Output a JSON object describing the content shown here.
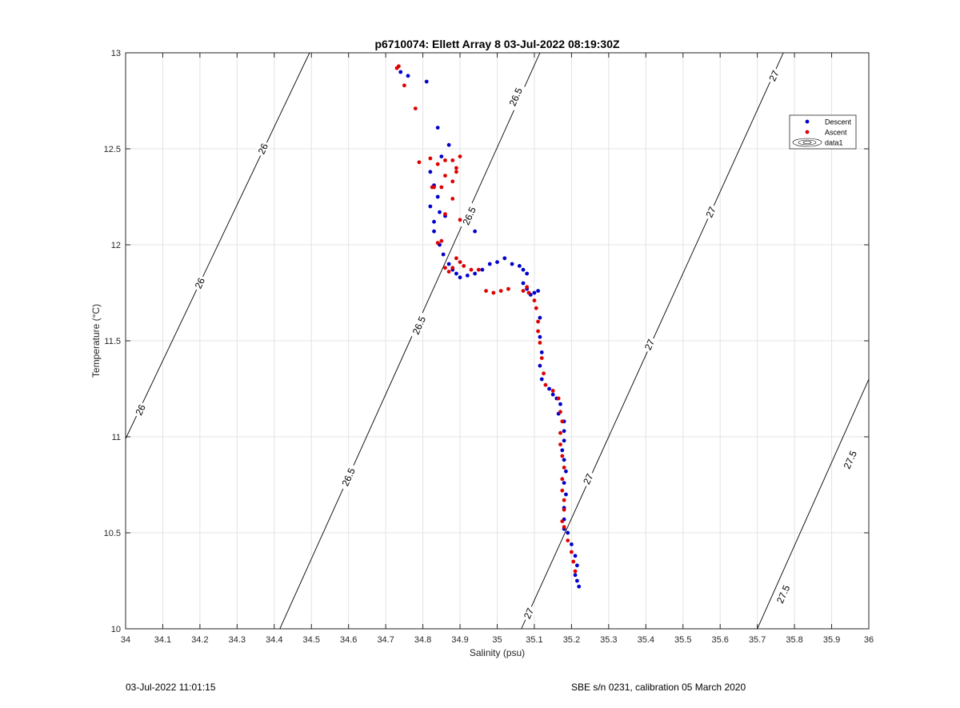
{
  "chart_data": {
    "type": "scatter",
    "title": "p6710074: Ellett Array 8 03-Jul-2022 08:19:30Z",
    "xlabel": "Salinity (psu)",
    "ylabel": "Temperature (°C)",
    "xlim": [
      34,
      36
    ],
    "ylim": [
      10,
      13
    ],
    "grid": true,
    "xticks": [
      "34",
      "34.1",
      "34.2",
      "34.3",
      "34.4",
      "34.5",
      "34.6",
      "34.7",
      "34.8",
      "34.9",
      "35",
      "35.1",
      "35.2",
      "35.3",
      "35.4",
      "35.5",
      "35.6",
      "35.7",
      "35.8",
      "35.9",
      "36"
    ],
    "yticks": [
      "10",
      "10.5",
      "11",
      "11.5",
      "12",
      "12.5",
      "13"
    ],
    "legend_position": "top-right",
    "legend": [
      {
        "name": "Descent",
        "color": "#0000cc"
      },
      {
        "name": "Ascent",
        "color": "#dd0000"
      },
      {
        "name": "data1",
        "color": "#000000"
      }
    ],
    "contours": [
      {
        "label": "26",
        "points": [
          [
            34,
            10.99
          ],
          [
            34.495,
            13
          ]
        ],
        "label_positions": [
          [
            34.04,
            11.14
          ],
          [
            34.2,
            11.8
          ],
          [
            34.37,
            12.5
          ]
        ]
      },
      {
        "label": "26.5",
        "points": [
          [
            34.415,
            10
          ],
          [
            35.115,
            13
          ]
        ],
        "label_positions": [
          [
            34.6,
            10.79
          ],
          [
            34.79,
            11.58
          ],
          [
            34.925,
            12.15
          ],
          [
            35.05,
            12.77
          ]
        ]
      },
      {
        "label": "27",
        "points": [
          [
            35.065,
            10
          ],
          [
            35.77,
            13
          ]
        ],
        "label_positions": [
          [
            35.085,
            10.08
          ],
          [
            35.245,
            10.78
          ],
          [
            35.41,
            11.48
          ],
          [
            35.575,
            12.17
          ],
          [
            35.745,
            12.88
          ]
        ]
      },
      {
        "label": "27.5",
        "points": [
          [
            35.7,
            10
          ],
          [
            36,
            11.3
          ]
        ],
        "label_positions": [
          [
            35.77,
            10.18
          ],
          [
            35.95,
            10.88
          ]
        ]
      }
    ],
    "series": [
      {
        "name": "Descent",
        "color": "#0000cc",
        "points": [
          [
            34.74,
            12.9
          ],
          [
            34.76,
            12.88
          ],
          [
            34.81,
            12.85
          ],
          [
            34.84,
            12.61
          ],
          [
            34.87,
            12.52
          ],
          [
            34.85,
            12.46
          ],
          [
            34.82,
            12.38
          ],
          [
            34.83,
            12.31
          ],
          [
            34.82,
            12.2
          ],
          [
            34.84,
            12.25
          ],
          [
            34.845,
            12.17
          ],
          [
            34.83,
            12.12
          ],
          [
            34.86,
            12.15
          ],
          [
            34.83,
            12.07
          ],
          [
            34.845,
            12.0
          ],
          [
            34.855,
            11.95
          ],
          [
            34.87,
            11.9
          ],
          [
            34.88,
            11.87
          ],
          [
            34.89,
            11.85
          ],
          [
            34.9,
            11.83
          ],
          [
            34.92,
            11.84
          ],
          [
            34.94,
            11.85
          ],
          [
            34.96,
            11.87
          ],
          [
            34.98,
            11.9
          ],
          [
            35.0,
            11.91
          ],
          [
            35.02,
            11.93
          ],
          [
            35.04,
            11.9
          ],
          [
            35.06,
            11.89
          ],
          [
            35.07,
            11.87
          ],
          [
            35.08,
            11.85
          ],
          [
            35.07,
            11.8
          ],
          [
            35.08,
            11.77
          ],
          [
            35.09,
            11.74
          ],
          [
            35.1,
            11.75
          ],
          [
            35.11,
            11.76
          ],
          [
            35.115,
            11.62
          ],
          [
            35.115,
            11.52
          ],
          [
            35.12,
            11.44
          ],
          [
            35.115,
            11.37
          ],
          [
            35.12,
            11.3
          ],
          [
            35.14,
            11.25
          ],
          [
            35.15,
            11.22
          ],
          [
            35.16,
            11.2
          ],
          [
            35.17,
            11.17
          ],
          [
            35.165,
            11.12
          ],
          [
            35.18,
            11.08
          ],
          [
            35.18,
            11.03
          ],
          [
            35.18,
            10.98
          ],
          [
            35.175,
            10.93
          ],
          [
            35.18,
            10.88
          ],
          [
            35.185,
            10.82
          ],
          [
            35.18,
            10.76
          ],
          [
            35.185,
            10.7
          ],
          [
            35.18,
            10.63
          ],
          [
            35.18,
            10.57
          ],
          [
            35.18,
            10.52
          ],
          [
            35.19,
            10.5
          ],
          [
            35.2,
            10.44
          ],
          [
            35.21,
            10.38
          ],
          [
            35.215,
            10.33
          ],
          [
            35.21,
            10.28
          ],
          [
            35.215,
            10.25
          ],
          [
            35.22,
            10.22
          ],
          [
            34.94,
            12.07
          ]
        ]
      },
      {
        "name": "Ascent",
        "color": "#dd0000",
        "points": [
          [
            34.73,
            12.92
          ],
          [
            34.735,
            12.93
          ],
          [
            34.75,
            12.83
          ],
          [
            34.78,
            12.71
          ],
          [
            34.79,
            12.43
          ],
          [
            34.82,
            12.45
          ],
          [
            34.84,
            12.42
          ],
          [
            34.86,
            12.44
          ],
          [
            34.88,
            12.44
          ],
          [
            34.9,
            12.46
          ],
          [
            34.89,
            12.38
          ],
          [
            34.86,
            12.36
          ],
          [
            34.88,
            12.33
          ],
          [
            34.825,
            12.3
          ],
          [
            34.83,
            12.3
          ],
          [
            34.85,
            12.3
          ],
          [
            34.89,
            12.4
          ],
          [
            34.88,
            12.24
          ],
          [
            34.86,
            12.16
          ],
          [
            34.9,
            12.13
          ],
          [
            34.85,
            12.02
          ],
          [
            34.84,
            12.01
          ],
          [
            34.86,
            11.88
          ],
          [
            34.87,
            11.86
          ],
          [
            34.88,
            11.88
          ],
          [
            34.89,
            11.93
          ],
          [
            34.9,
            11.91
          ],
          [
            34.91,
            11.89
          ],
          [
            34.93,
            11.87
          ],
          [
            34.95,
            11.87
          ],
          [
            34.97,
            11.76
          ],
          [
            34.99,
            11.75
          ],
          [
            35.01,
            11.76
          ],
          [
            35.03,
            11.77
          ],
          [
            35.07,
            11.76
          ],
          [
            35.08,
            11.78
          ],
          [
            35.085,
            11.75
          ],
          [
            35.1,
            11.71
          ],
          [
            35.105,
            11.67
          ],
          [
            35.11,
            11.6
          ],
          [
            35.11,
            11.55
          ],
          [
            35.115,
            11.49
          ],
          [
            35.12,
            11.41
          ],
          [
            35.125,
            11.33
          ],
          [
            35.13,
            11.27
          ],
          [
            35.15,
            11.24
          ],
          [
            35.165,
            11.2
          ],
          [
            35.17,
            11.13
          ],
          [
            35.175,
            11.08
          ],
          [
            35.17,
            11.02
          ],
          [
            35.17,
            10.96
          ],
          [
            35.175,
            10.9
          ],
          [
            35.18,
            10.84
          ],
          [
            35.175,
            10.78
          ],
          [
            35.175,
            10.72
          ],
          [
            35.18,
            10.67
          ],
          [
            35.18,
            10.62
          ],
          [
            35.175,
            10.56
          ],
          [
            35.18,
            10.53
          ],
          [
            35.19,
            10.46
          ],
          [
            35.2,
            10.4
          ],
          [
            35.205,
            10.35
          ],
          [
            35.21,
            10.3
          ]
        ]
      }
    ]
  },
  "footer": {
    "date": "03-Jul-2022 11:01:15",
    "calibration": "SBE s/n 0231, calibration 05 March 2020"
  }
}
